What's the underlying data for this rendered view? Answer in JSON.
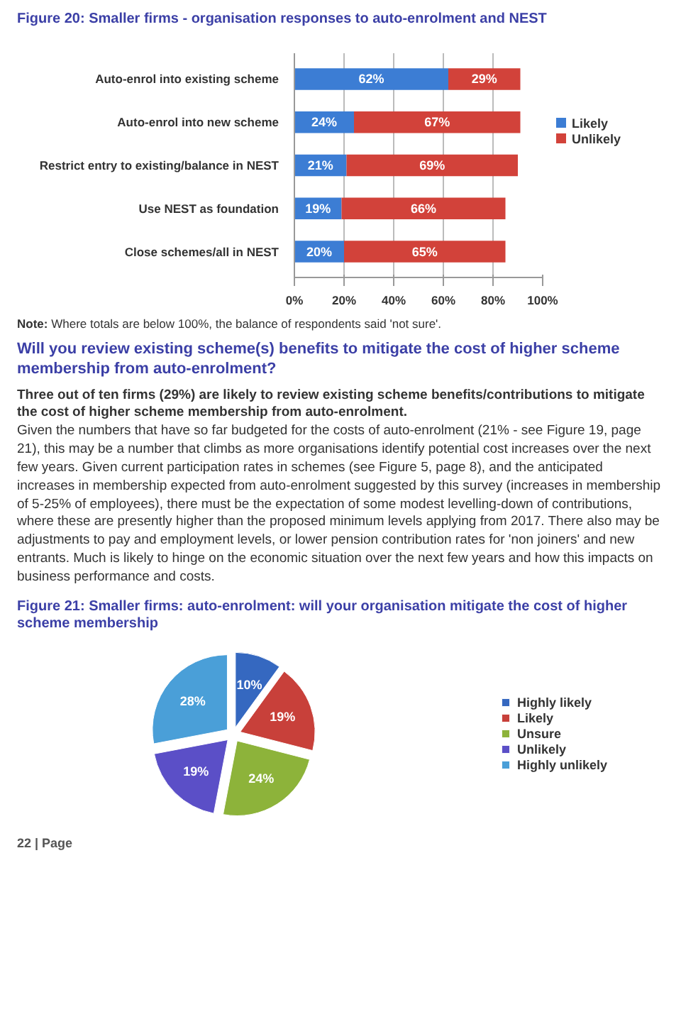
{
  "chart_data": [
    {
      "type": "bar",
      "title": "Figure 20: Smaller firms - organisation responses to auto-enrolment and NEST",
      "orientation": "horizontal",
      "stacked": true,
      "categories": [
        "Auto-enrol into existing scheme",
        "Auto-enrol into new scheme",
        "Restrict entry to existing/balance in NEST",
        "Use NEST as foundation",
        "Close schemes/all in NEST"
      ],
      "series": [
        {
          "name": "Likely",
          "color": "#3c7dd4",
          "values": [
            62,
            24,
            21,
            19,
            20
          ],
          "value_labels": [
            "62%",
            "24%",
            "21%",
            "19%",
            "20%"
          ]
        },
        {
          "name": "Unlikely",
          "color": "#d2423a",
          "values": [
            29,
            67,
            69,
            66,
            65
          ],
          "value_labels": [
            "29%",
            "67%",
            "69%",
            "66%",
            "65%"
          ]
        }
      ],
      "xlim": [
        0,
        100
      ],
      "xticks": [
        {
          "value": 0,
          "label": "0%"
        },
        {
          "value": 20,
          "label": "20%"
        },
        {
          "value": 40,
          "label": "40%"
        },
        {
          "value": 60,
          "label": "60%"
        },
        {
          "value": 80,
          "label": "80%"
        },
        {
          "value": 100,
          "label": "100%"
        }
      ],
      "grid": "x",
      "legend": "right",
      "annotations": [
        "Note: Where totals are below 100%, the balance of respondents said 'not sure'.",
        "Will you review existing scheme(s) benefits to mitigate the cost of higher scheme membership from auto-enrolment?",
        "Three out of ten firms (29%) are likely to review existing scheme benefits/contributions to mitigate the cost of higher scheme membership from auto-enrolment.",
        "Given the numbers that have so far budgeted for the costs of auto-enrolment (21% - see Figure 19, page 21), this may be a number that climbs as more organisations identify potential cost increases over the next few years. Given current participation rates in schemes (see Figure 5, page 8), and the anticipated increases in membership expected from auto-enrolment suggested by this survey (increases in membership of 5-25% of employees), there must be the expectation of some modest levelling-down of contributions, where these are presently higher than the proposed minimum levels applying from 2017. There also may be adjustments to pay and employment levels, or lower pension contribution rates for 'non joiners' and new entrants. Much is likely to hinge on the economic situation over the next few years and how this impacts on business performance and costs."
      ]
    },
    {
      "type": "pie",
      "title": "Figure 21: Smaller firms: auto-enrolment: will your organisation mitigate the cost of higher scheme membership",
      "categories": [
        "Highly likely",
        "Likely",
        "Unsure",
        "Unlikely",
        "Highly unlikely"
      ],
      "values": [
        10,
        19,
        24,
        19,
        28
      ],
      "colors": [
        "#3568c0",
        "#c8403a",
        "#8db33a",
        "#5b4fc7",
        "#4a9fd8"
      ],
      "value_labels": [
        "10%",
        "19%",
        "24%",
        "19%",
        "28%"
      ],
      "legend": "right",
      "annotations": [
        "22 | Page"
      ]
    }
  ]
}
